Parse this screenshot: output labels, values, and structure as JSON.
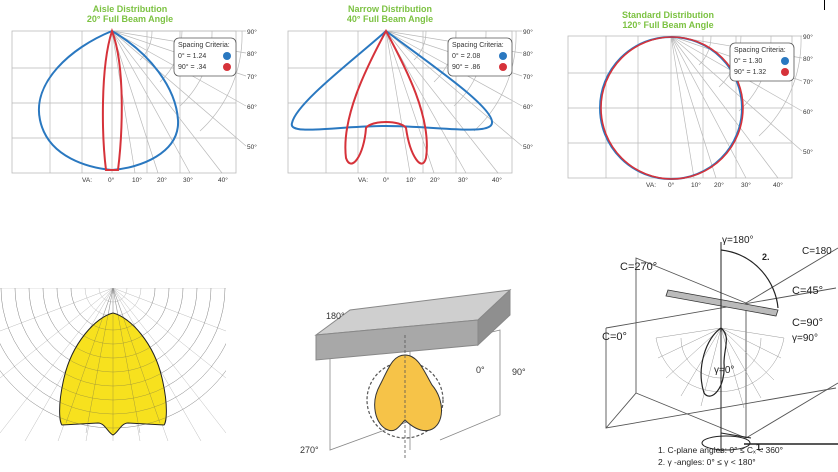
{
  "colors": {
    "green": "#7cc242",
    "blue": "#2a78c0",
    "red": "#d6323a",
    "yellow": "#f7e11e",
    "grid": "#b9b9b9",
    "gold": "#f6c348"
  },
  "panels": [
    {
      "title": "Aisle Distribution",
      "subtitle": "20° Full Beam Angle",
      "legend_title": "Spacing Criteria:",
      "legend": [
        {
          "label": "0° = 1.24",
          "color": "blue"
        },
        {
          "label": "90° = .34",
          "color": "red"
        }
      ],
      "right_labels": [
        "90°",
        "80°",
        "70°",
        "60°",
        "50°"
      ],
      "bottom_labels": [
        "VA:",
        "0°",
        "10°",
        "20°",
        "30°",
        "40°"
      ]
    },
    {
      "title": "Narrow Distribution",
      "subtitle": "40° Full Beam Angle",
      "legend_title": "Spacing Criteria:",
      "legend": [
        {
          "label": "0° = 2.08",
          "color": "blue"
        },
        {
          "label": "90° = .86",
          "color": "red"
        }
      ],
      "right_labels": [
        "90°",
        "80°",
        "70°",
        "60°",
        "50°"
      ],
      "bottom_labels": [
        "VA:",
        "0°",
        "10°",
        "20°",
        "30°",
        "40°"
      ]
    },
    {
      "title": "Standard Distribution",
      "subtitle": "120° Full Beam Angle",
      "legend_title": "Spacing Criteria:",
      "legend": [
        {
          "label": "0° = 1.30",
          "color": "blue"
        },
        {
          "label": "90° = 1.32",
          "color": "red"
        }
      ],
      "right_labels": [
        "90°",
        "80°",
        "70°",
        "60°",
        "50°"
      ],
      "bottom_labels": [
        "VA:",
        "0°",
        "10°",
        "20°",
        "30°",
        "40°"
      ]
    }
  ],
  "luminaire_diagram": {
    "labels": [
      "180°",
      "0°",
      "90°",
      "270°"
    ]
  },
  "cplane_diagram": {
    "labels": [
      "γ=180°",
      "C=180",
      "C=270°",
      "C=45°",
      "C=0°",
      "C=90°",
      "γ=90°",
      "γ=0°",
      "2.",
      "1."
    ],
    "notes": [
      "1. C-plane angles: 0° ≤ Cₓ < 360°",
      "2. γ -angles: 0° ≤ γ < 180°"
    ]
  }
}
